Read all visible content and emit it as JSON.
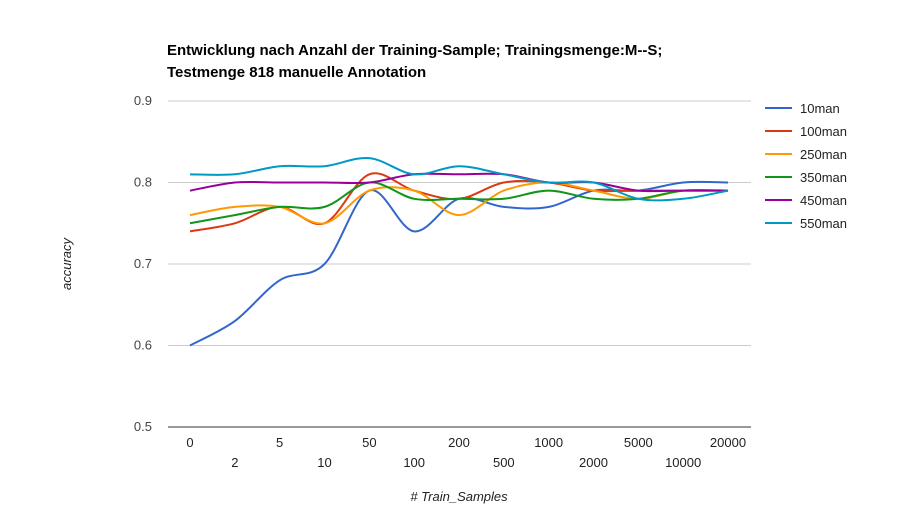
{
  "chart_data": {
    "type": "line",
    "title": "Entwicklung nach Anzahl der Training-Sample; Trainingsmenge:M--S; Testmenge 818 manuelle Annotation",
    "title_lines": [
      "Entwicklung nach Anzahl der Training-Sample; Trainingsmenge:M--S;",
      "Testmenge 818 manuelle Annotation"
    ],
    "xlabel": "# Train_Samples",
    "ylabel": "accuracy",
    "categories": [
      "0",
      "2",
      "5",
      "10",
      "50",
      "100",
      "200",
      "500",
      "1000",
      "2000",
      "5000",
      "10000",
      "20000"
    ],
    "y_ticks": [
      "0.5",
      "0.6",
      "0.7",
      "0.8",
      "0.9"
    ],
    "ylim": [
      0.5,
      0.9
    ],
    "grid": true,
    "legend_position": "right",
    "series": [
      {
        "name": "10man",
        "color": "#3366cc",
        "values": [
          0.6,
          0.63,
          0.68,
          0.7,
          0.79,
          0.74,
          0.78,
          0.77,
          0.77,
          0.79,
          0.79,
          0.8,
          0.8
        ]
      },
      {
        "name": "100man",
        "color": "#dc3912",
        "values": [
          0.74,
          0.75,
          0.77,
          0.75,
          0.81,
          0.79,
          0.78,
          0.8,
          0.8,
          0.79,
          0.79,
          0.79,
          0.79
        ]
      },
      {
        "name": "250man",
        "color": "#ff9900",
        "values": [
          0.76,
          0.77,
          0.77,
          0.75,
          0.79,
          0.79,
          0.76,
          0.79,
          0.8,
          0.79,
          0.78,
          0.79,
          0.79
        ]
      },
      {
        "name": "350man",
        "color": "#109618",
        "values": [
          0.75,
          0.76,
          0.77,
          0.77,
          0.8,
          0.78,
          0.78,
          0.78,
          0.79,
          0.78,
          0.78,
          0.79,
          0.79
        ]
      },
      {
        "name": "450man",
        "color": "#990099",
        "values": [
          0.79,
          0.8,
          0.8,
          0.8,
          0.8,
          0.81,
          0.81,
          0.81,
          0.8,
          0.8,
          0.79,
          0.79,
          0.79
        ]
      },
      {
        "name": "550man",
        "color": "#0099c6",
        "values": [
          0.81,
          0.81,
          0.82,
          0.82,
          0.83,
          0.81,
          0.82,
          0.81,
          0.8,
          0.8,
          0.78,
          0.78,
          0.79
        ]
      }
    ]
  }
}
